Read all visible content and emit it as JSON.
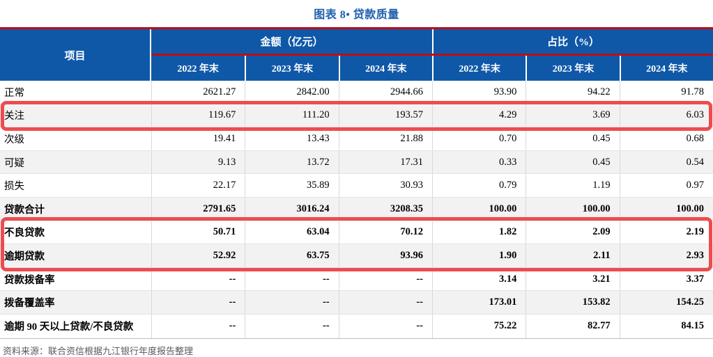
{
  "title": "图表 8• 贷款质量",
  "table": {
    "corner_label": "项目",
    "groups": [
      {
        "label": "金额（亿元）"
      },
      {
        "label": "占比（%）"
      }
    ],
    "sub_headers": [
      "2022 年末",
      "2023 年末",
      "2024 年末",
      "2022 年末",
      "2023 年末",
      "2024 年末"
    ],
    "rows": [
      {
        "label": "正常",
        "values": [
          "2621.27",
          "2842.00",
          "2944.66",
          "93.90",
          "94.22",
          "91.78"
        ]
      },
      {
        "label": "关注",
        "values": [
          "119.67",
          "111.20",
          "193.57",
          "4.29",
          "3.69",
          "6.03"
        ],
        "highlighted": true
      },
      {
        "label": "次级",
        "values": [
          "19.41",
          "13.43",
          "21.88",
          "0.70",
          "0.45",
          "0.68"
        ]
      },
      {
        "label": "可疑",
        "values": [
          "9.13",
          "13.72",
          "17.31",
          "0.33",
          "0.45",
          "0.54"
        ]
      },
      {
        "label": "损失",
        "values": [
          "22.17",
          "35.89",
          "30.93",
          "0.79",
          "1.19",
          "0.97"
        ]
      },
      {
        "label": "贷款合计",
        "values": [
          "2791.65",
          "3016.24",
          "3208.35",
          "100.00",
          "100.00",
          "100.00"
        ]
      },
      {
        "label": "不良贷款",
        "values": [
          "50.71",
          "63.04",
          "70.12",
          "1.82",
          "2.09",
          "2.19"
        ],
        "highlighted": true
      },
      {
        "label": "逾期贷款",
        "values": [
          "52.92",
          "63.75",
          "93.96",
          "1.90",
          "2.11",
          "2.93"
        ],
        "highlighted": true
      },
      {
        "label": "贷款拨备率",
        "values": [
          "--",
          "--",
          "--",
          "3.14",
          "3.21",
          "3.37"
        ]
      },
      {
        "label": "拨备覆盖率",
        "values": [
          "--",
          "--",
          "--",
          "173.01",
          "153.82",
          "154.25"
        ]
      },
      {
        "label": "逾期 90 天以上贷款/不良贷款",
        "values": [
          "--",
          "--",
          "--",
          "75.22",
          "82.77",
          "84.15"
        ]
      }
    ]
  },
  "source_note": "资料来源：联合资信根据九江银行年度报告整理",
  "colors": {
    "header_blue": "#0F58A8",
    "title_blue": "#1E5FAE",
    "accent_dark_red": "#BE0D13",
    "highlight_red": "#ED4C4E",
    "stripe_gray": "#F2F2F2",
    "grid_line_gray": "#D9D9D9",
    "source_text_gray": "#595959"
  }
}
